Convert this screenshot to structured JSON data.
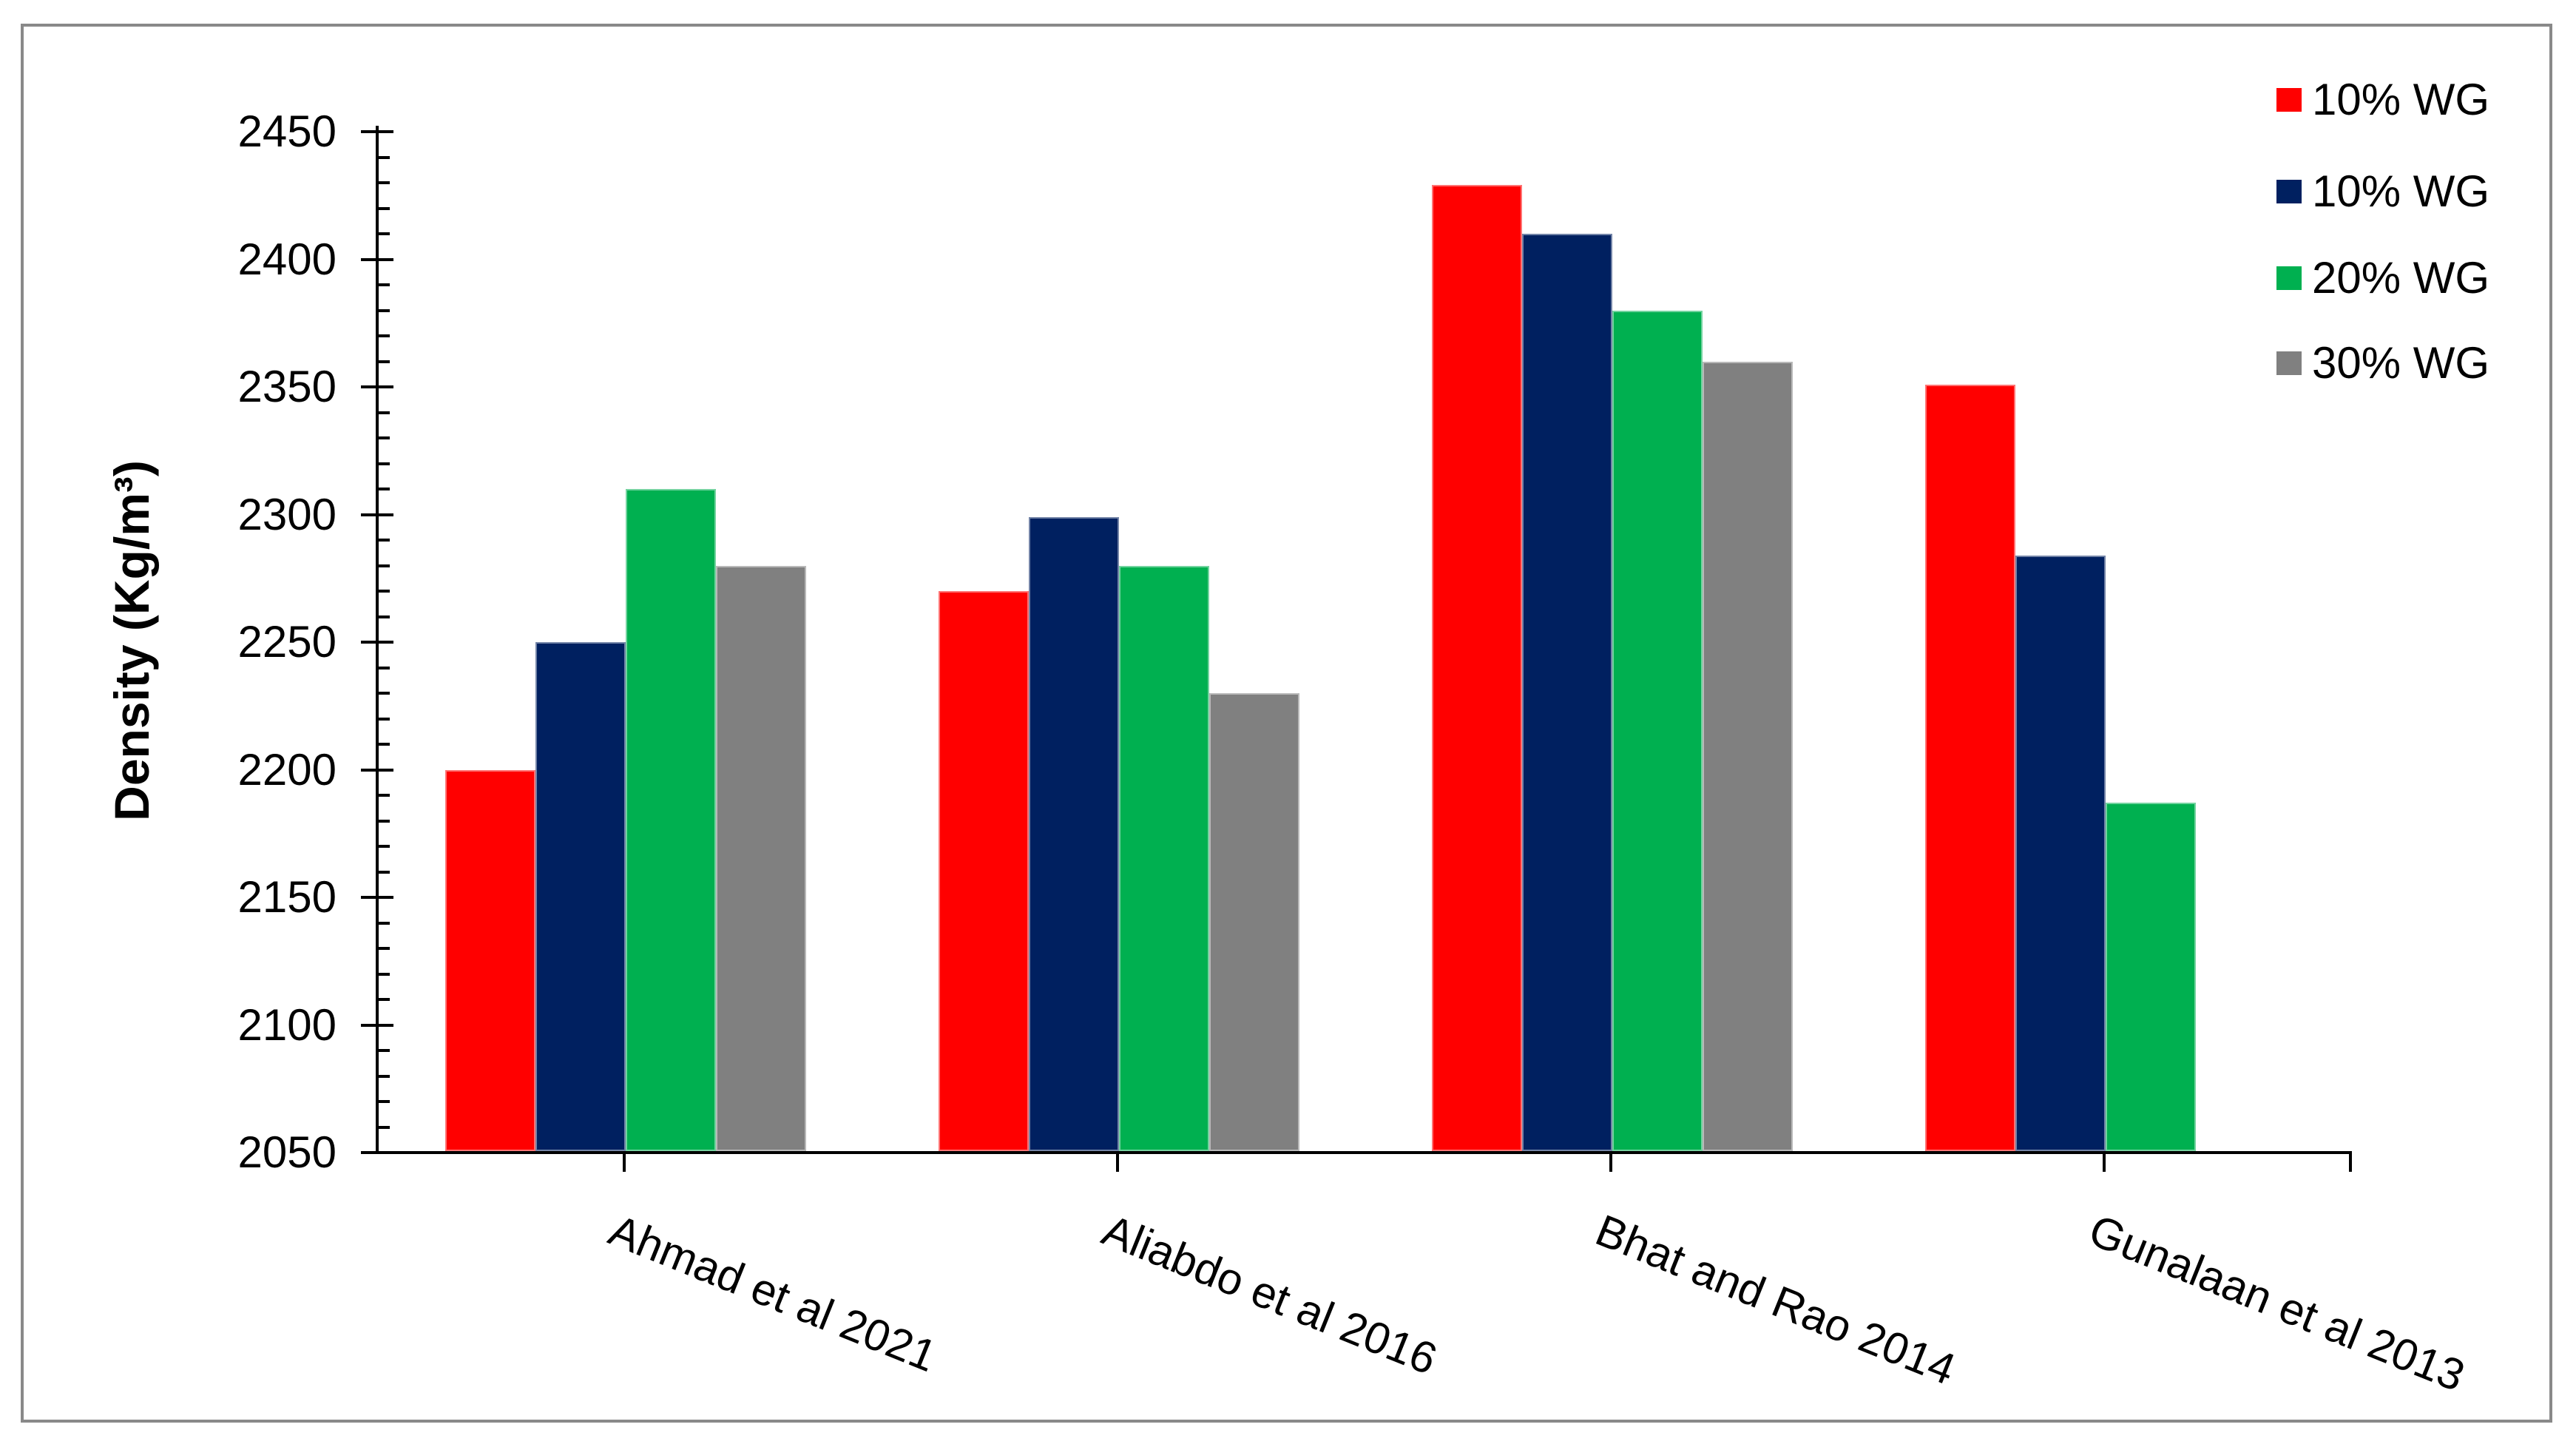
{
  "chart_data": {
    "type": "bar",
    "title": "",
    "ylabel": "Density (Kg/m³)",
    "xlabel": "",
    "ylim": [
      2050,
      2450
    ],
    "y_major_step": 50,
    "y_minor_step": 10,
    "y_tick_labels": [
      "2050",
      "2100",
      "2150",
      "2200",
      "2250",
      "2300",
      "2350",
      "2400",
      "2450"
    ],
    "categories": [
      "Ahmad et al 2021",
      "Aliabdo et al 2016",
      "Bhat and Rao 2014",
      "Gunalaan et al 2013"
    ],
    "series": [
      {
        "name": "10% WG",
        "color": "#FF0000",
        "values": [
          2200,
          2270,
          2429,
          2351
        ]
      },
      {
        "name": "10% WG",
        "color": "#002060",
        "values": [
          2250,
          2299,
          2410,
          2284
        ]
      },
      {
        "name": "20% WG",
        "color": "#00B050",
        "values": [
          2310,
          2280,
          2380,
          2187
        ]
      },
      {
        "name": "30% WG",
        "color": "#808080",
        "values": [
          2280,
          2230,
          2360,
          null
        ]
      }
    ],
    "legend_position": "top-right",
    "grid": false,
    "axis_color": "#000000",
    "background_color": "#FFFFFF",
    "border_color": "#898989"
  }
}
